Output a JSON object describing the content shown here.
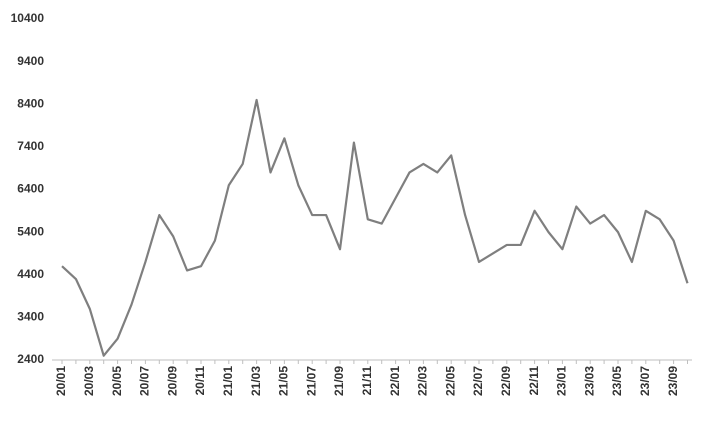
{
  "chart_data": {
    "type": "line",
    "color": "#7f7f7f",
    "categories": [
      "20/01",
      null,
      "20/03",
      null,
      "20/05",
      null,
      "20/07",
      null,
      "20/09",
      null,
      "20/11",
      null,
      "21/01",
      null,
      "21/03",
      null,
      "21/05",
      null,
      "21/07",
      null,
      "21/09",
      null,
      "21/11",
      null,
      "22/01",
      null,
      "22/03",
      null,
      "22/05",
      null,
      "22/07",
      null,
      "22/09",
      null,
      "22/11",
      null,
      "23/01",
      null,
      "23/03",
      null,
      "23/05",
      null,
      "23/07",
      null,
      "23/09",
      null
    ],
    "values": [
      4600,
      4300,
      3600,
      2500,
      2900,
      3700,
      4700,
      5800,
      5300,
      4500,
      4600,
      5200,
      6500,
      7000,
      8500,
      6800,
      7600,
      6500,
      5800,
      5800,
      5000,
      7500,
      5700,
      5600,
      6200,
      6800,
      7000,
      6800,
      7200,
      5800,
      4700,
      4900,
      5100,
      5100,
      5900,
      5400,
      5000,
      6000,
      5600,
      5800,
      5400,
      4700,
      5900,
      5700,
      5200,
      4200
    ],
    "ylim": [
      2400,
      10400
    ],
    "yticks": [
      2400,
      3400,
      4400,
      5400,
      6400,
      7400,
      8400,
      9400,
      10400
    ]
  }
}
